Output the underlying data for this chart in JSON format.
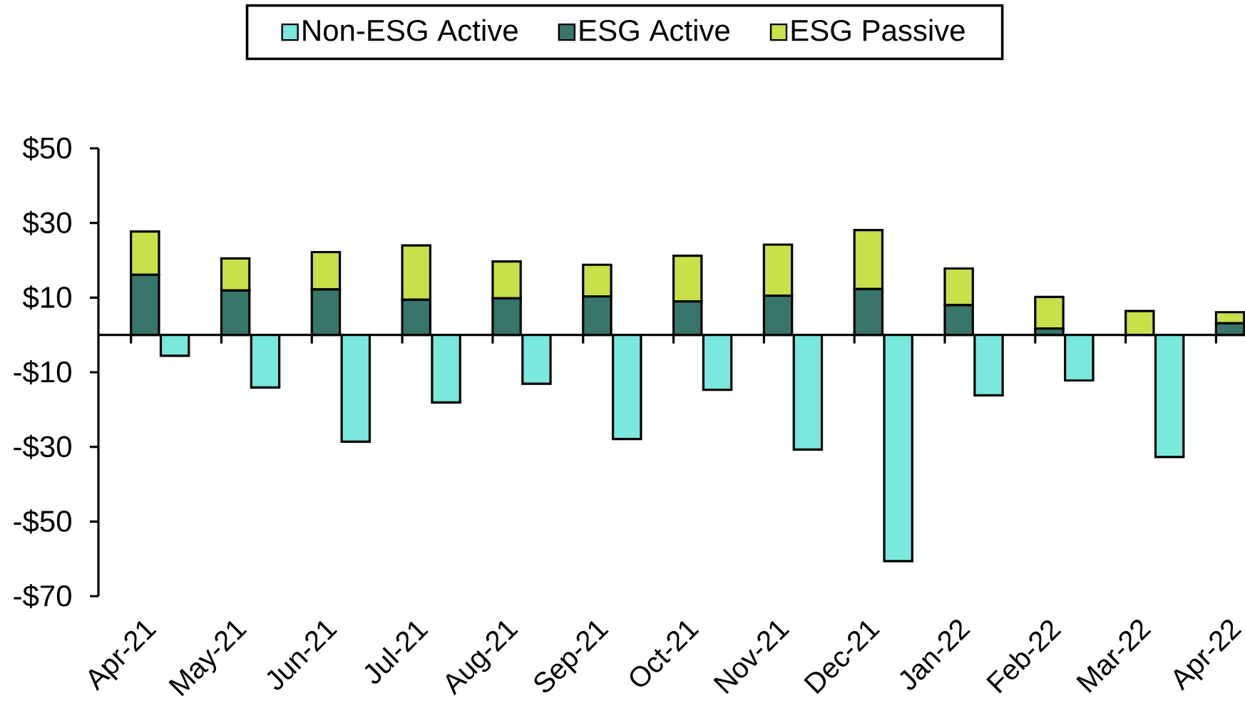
{
  "chart_data": {
    "type": "bar",
    "stacked": true,
    "legend": "top",
    "categories": [
      "Apr-21",
      "May-21",
      "Jun-21",
      "Jul-21",
      "Aug-21",
      "Sep-21",
      "Oct-21",
      "Nov-21",
      "Dec-21",
      "Jan-22",
      "Feb-22",
      "Mar-22",
      "Apr-22"
    ],
    "series": [
      {
        "name": "Non-ESG Active",
        "color": "#7ae8dc",
        "values": [
          -5.6,
          -14.1,
          -28.6,
          -18.1,
          -13.1,
          -27.9,
          -14.7,
          -30.7,
          -60.6,
          -16.2,
          -12.2,
          -32.7,
          null
        ]
      },
      {
        "name": "ESG Active",
        "color": "#38756b",
        "values": [
          16.1,
          11.9,
          12.2,
          9.4,
          9.8,
          10.3,
          9.0,
          10.5,
          12.3,
          8.0,
          1.7,
          0,
          3.1
        ]
      },
      {
        "name": "ESG Passive",
        "color": "#c9e04a",
        "values": [
          11.6,
          8.6,
          10.0,
          14.6,
          9.9,
          8.5,
          12.2,
          13.7,
          15.8,
          9.8,
          8.5,
          6.4,
          3.0
        ]
      }
    ],
    "ylim": [
      -70,
      50
    ],
    "yticks": [
      {
        "value": -70,
        "label": "-$70"
      },
      {
        "value": -50,
        "label": "-$50"
      },
      {
        "value": -30,
        "label": "-$30"
      },
      {
        "value": -10,
        "label": "-$10"
      },
      {
        "value": 10,
        "label": "$10"
      },
      {
        "value": 30,
        "label": "$30"
      },
      {
        "value": 50,
        "label": "$50"
      }
    ]
  }
}
